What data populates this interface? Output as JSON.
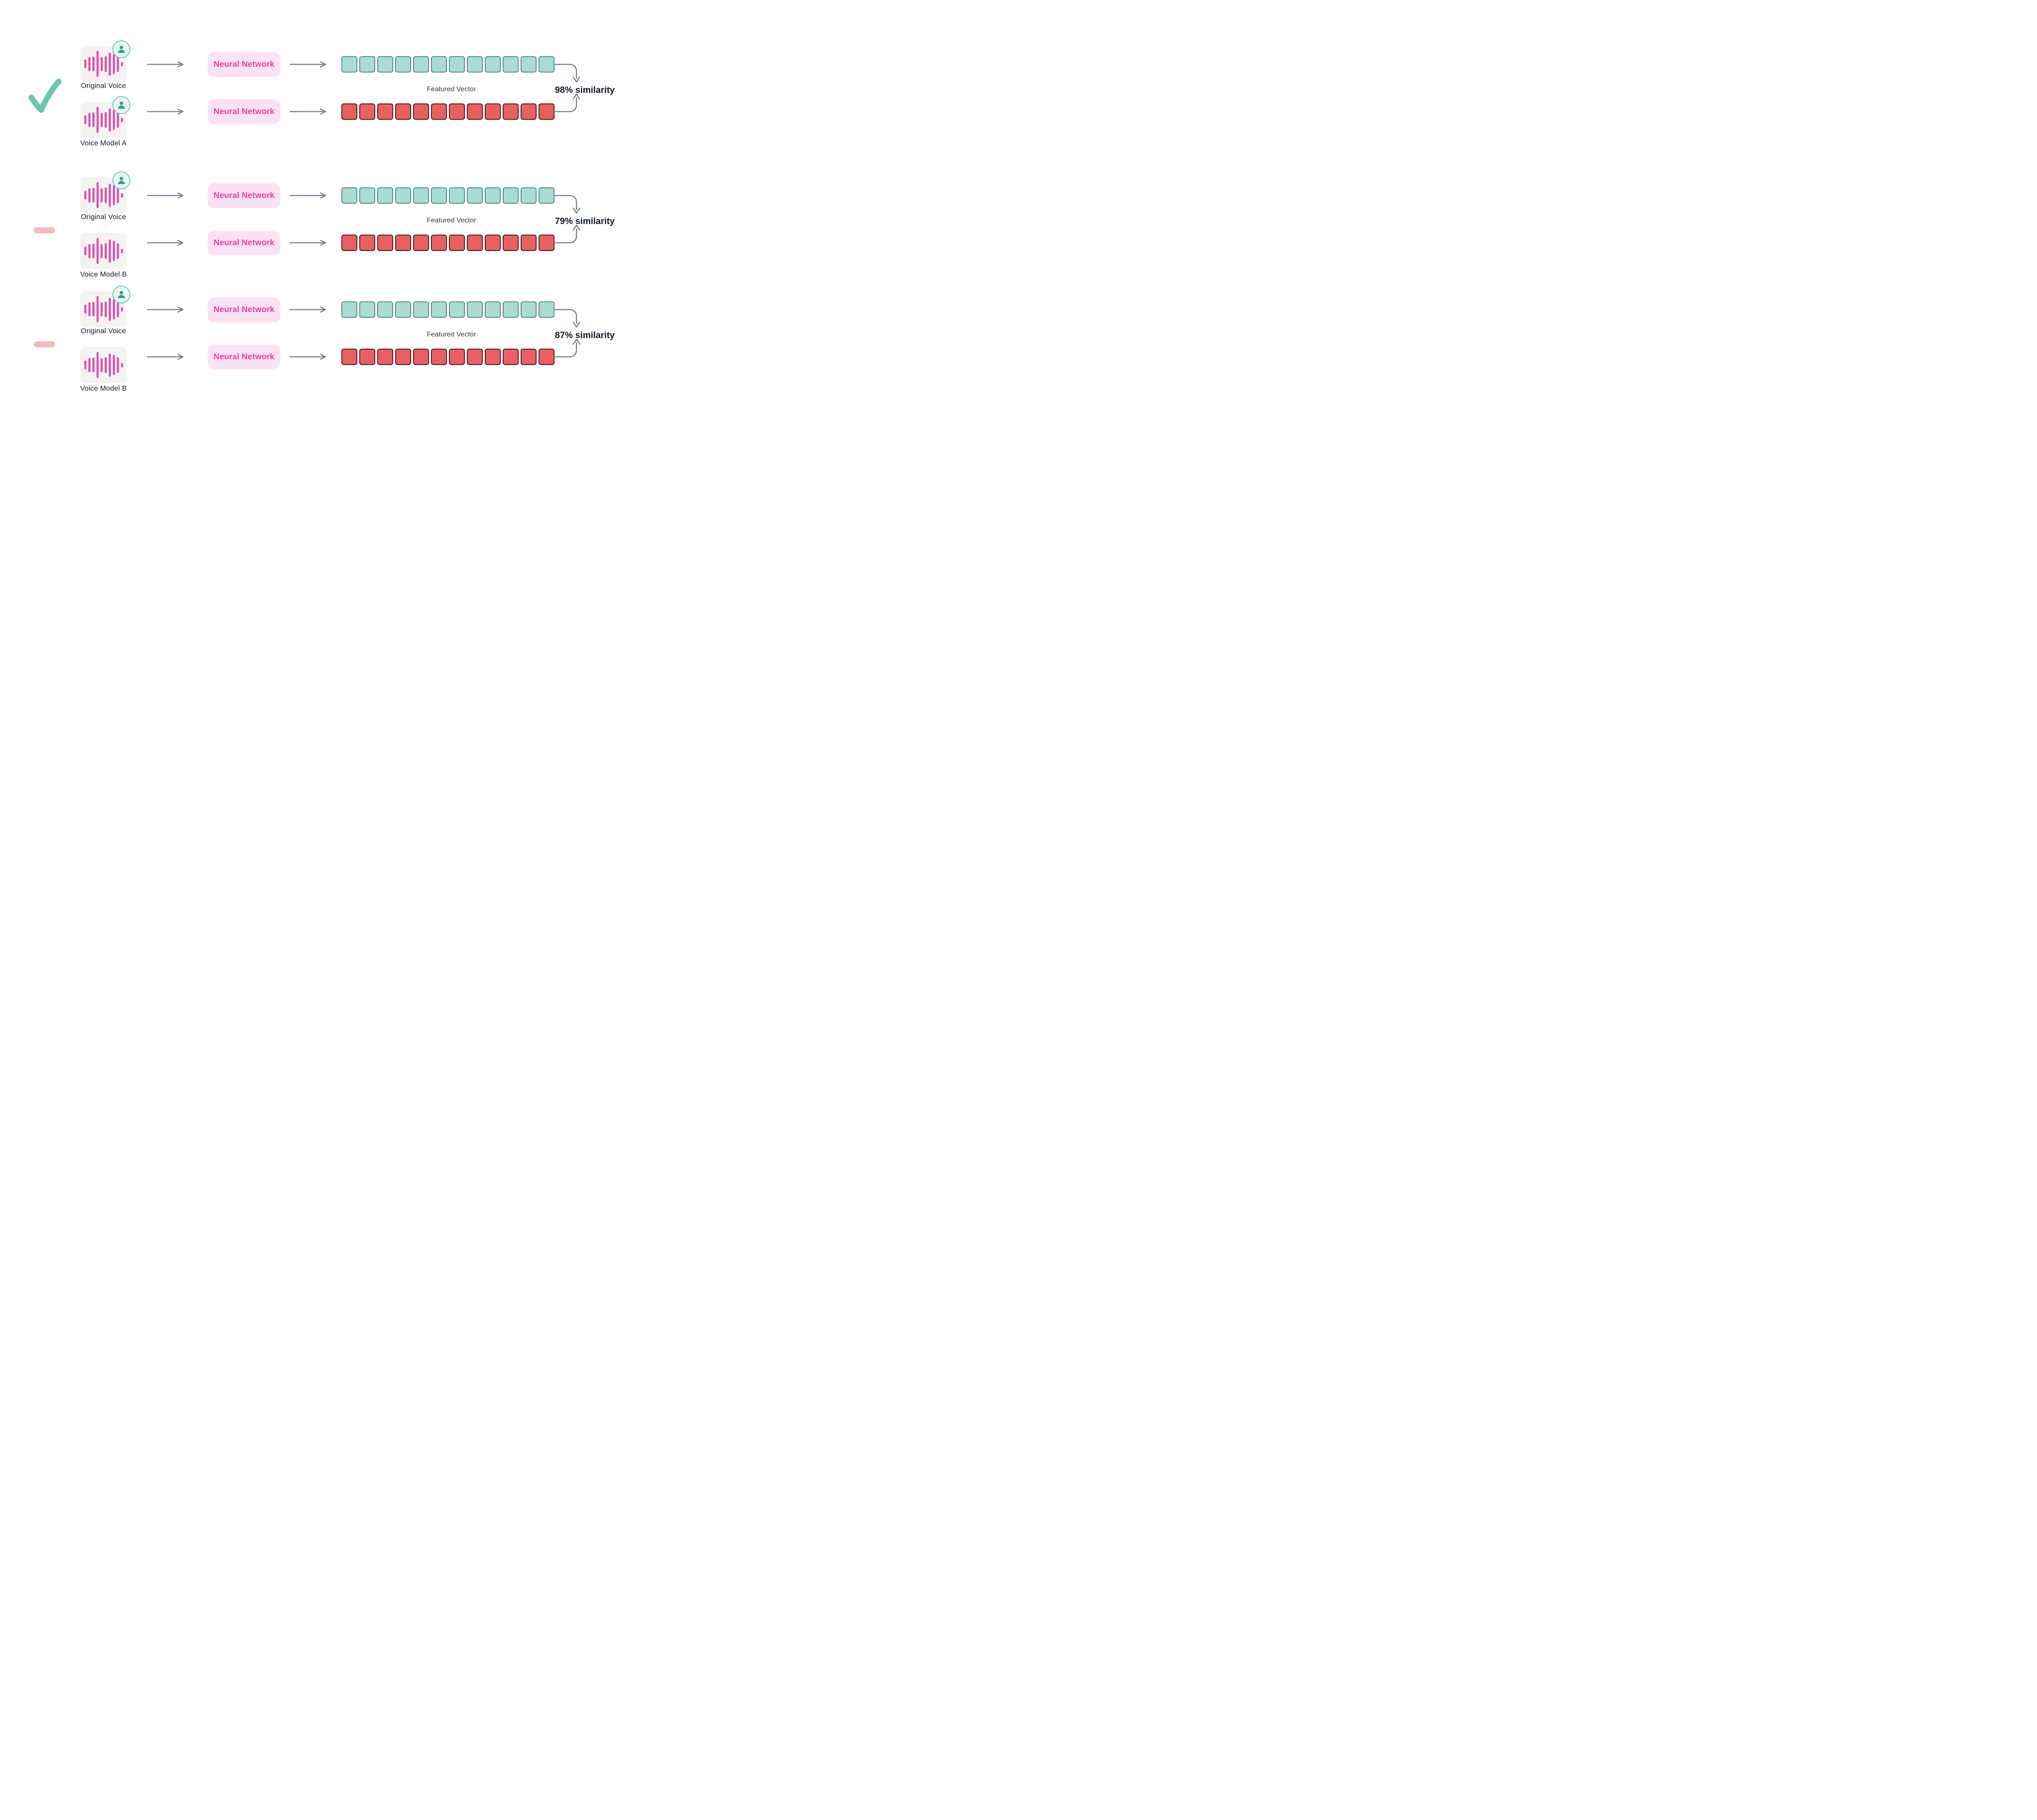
{
  "diagram": {
    "neural_network_label": "Neural Network",
    "featured_vector_label": "Featured Vector",
    "vector_cell_count": 12,
    "waveform_bar_heights": [
      22,
      35,
      36,
      64,
      35,
      39,
      57,
      50,
      39,
      11
    ],
    "colors": {
      "waveform_pink": "#E24AB4",
      "neural_network_bg": "#FBE2F3",
      "neural_network_text": "#EE3BA4",
      "teal_cell_fill": "#A9DCD3",
      "teal_cell_border": "#48837B",
      "red_cell_fill": "#EA6060",
      "red_cell_border": "#400D0D",
      "arrow": "#6C7893",
      "checkmark": "#69C8B2",
      "dash": "#F6B9BE",
      "avatar_teal": "#2EA391",
      "text_dark": "#11182A"
    },
    "groups": [
      {
        "marker": "check",
        "source_label": "Original Voice",
        "model_label": "Voice Model A",
        "model_has_avatar": true,
        "similarity": "98% similarity"
      },
      {
        "marker": "dash",
        "source_label": "Original Voice",
        "model_label": "Voice Model B",
        "model_has_avatar": false,
        "similarity": "79% similarity"
      },
      {
        "marker": "dash",
        "source_label": "Original Voice",
        "model_label": "Voice Model B",
        "model_has_avatar": false,
        "similarity": "87% similarity"
      }
    ]
  }
}
